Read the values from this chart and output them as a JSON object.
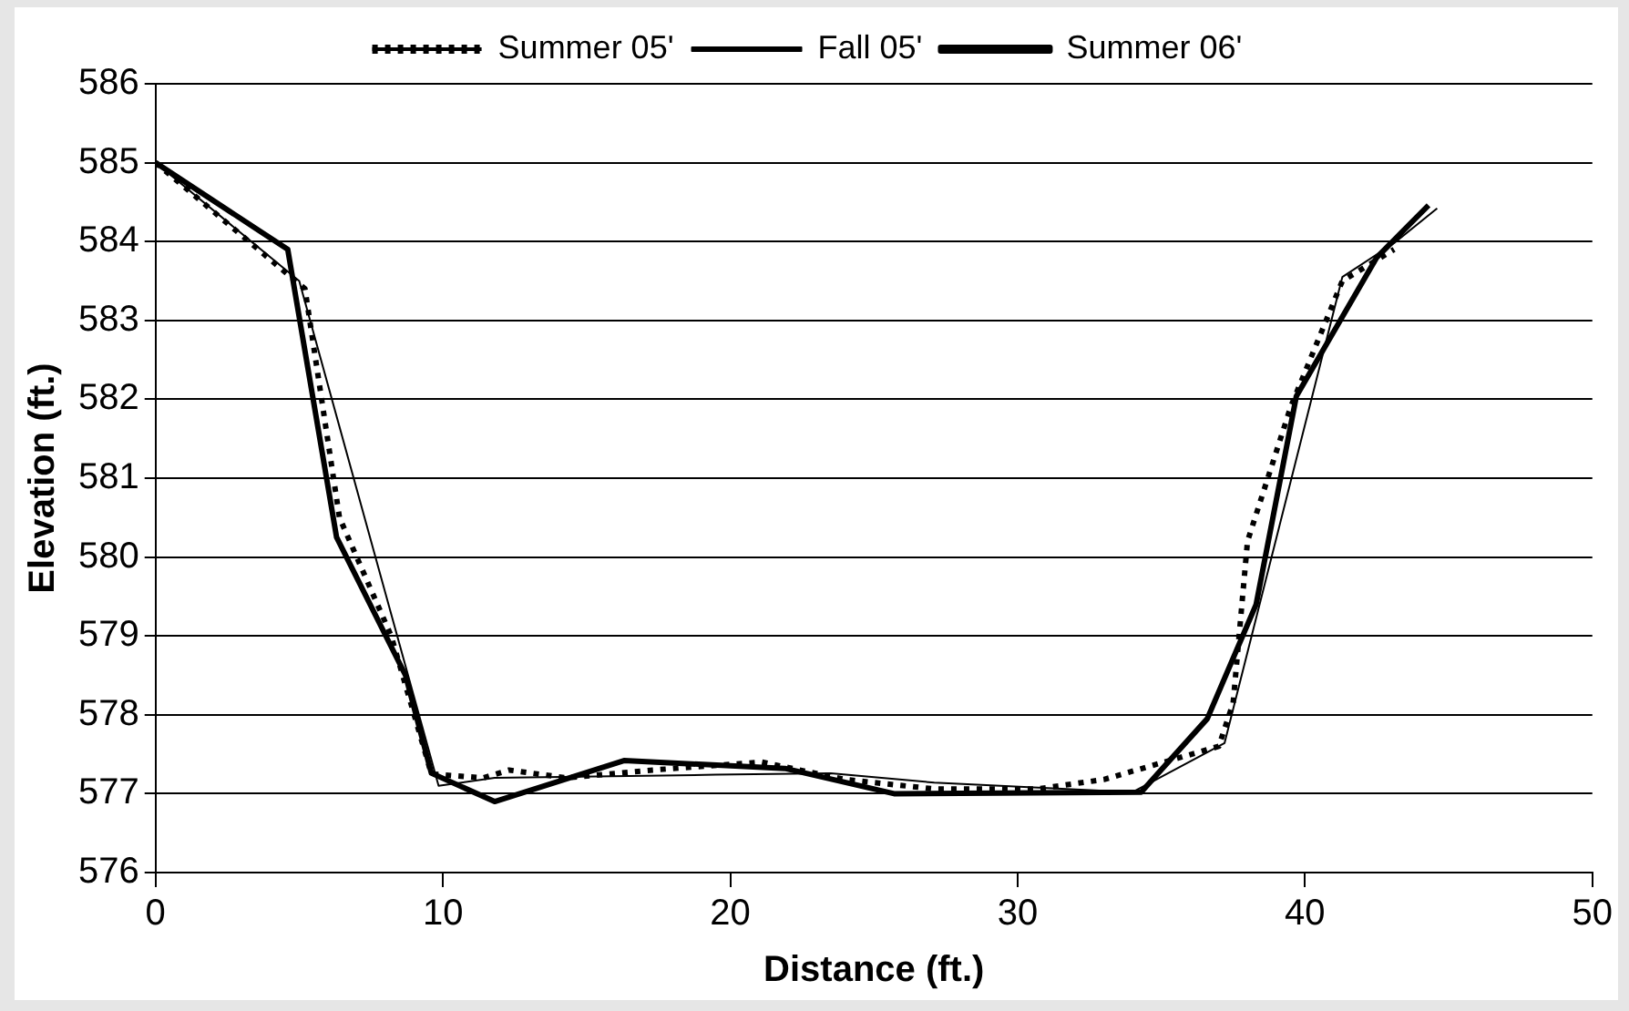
{
  "chart_data": {
    "type": "line",
    "xlabel": "Distance (ft.)",
    "ylabel": "Elevation (ft.)",
    "xlim": [
      0,
      50
    ],
    "xticks": [
      0,
      10,
      20,
      30,
      40,
      50
    ],
    "ylim": [
      576,
      586
    ],
    "yticks": [
      576,
      577,
      578,
      579,
      580,
      581,
      582,
      583,
      584,
      585,
      586
    ],
    "grid": "y",
    "legend": "top",
    "marker": "none",
    "series": [
      {
        "name": "Summer 05'",
        "color": "#000000",
        "line_style": "dotted",
        "x": [
          0,
          5.2,
          6.4,
          8.2,
          9.6,
          11.4,
          12.3,
          14.3,
          17.3,
          21.1,
          24,
          27.1,
          30.7,
          33,
          37,
          37.5,
          38,
          39.5,
          41.3,
          43.1
        ],
        "values": [
          585,
          583.4,
          580.5,
          579,
          577.25,
          577.2,
          577.3,
          577.2,
          577.3,
          577.4,
          577.18,
          577.06,
          577.06,
          577.18,
          577.6,
          578.15,
          580.2,
          581.9,
          583.5,
          583.9
        ]
      },
      {
        "name": "Fall 05'",
        "color": "#000000",
        "line_style": "solid",
        "x": [
          0,
          5,
          9.85,
          11.8,
          19.5,
          23.5,
          27.1,
          34,
          37.2,
          41.3,
          43.1,
          44.6
        ],
        "values": [
          585,
          583.5,
          577.1,
          577.2,
          577.24,
          577.26,
          577.14,
          577.02,
          577.64,
          583.55,
          583.98,
          584.42
        ]
      },
      {
        "name": "Summer 06'",
        "color": "#000000",
        "line_style": "solid",
        "x": [
          0,
          4.6,
          6.3,
          8.7,
          9.6,
          11.8,
          16.3,
          21.9,
          25.7,
          34.3,
          36.6,
          38.3,
          39.7,
          42.5,
          44.3
        ],
        "values": [
          585,
          583.9,
          580.25,
          578.5,
          577.26,
          576.9,
          577.42,
          577.32,
          577,
          577.02,
          577.95,
          579.4,
          582.04,
          583.8,
          584.46
        ]
      }
    ]
  }
}
